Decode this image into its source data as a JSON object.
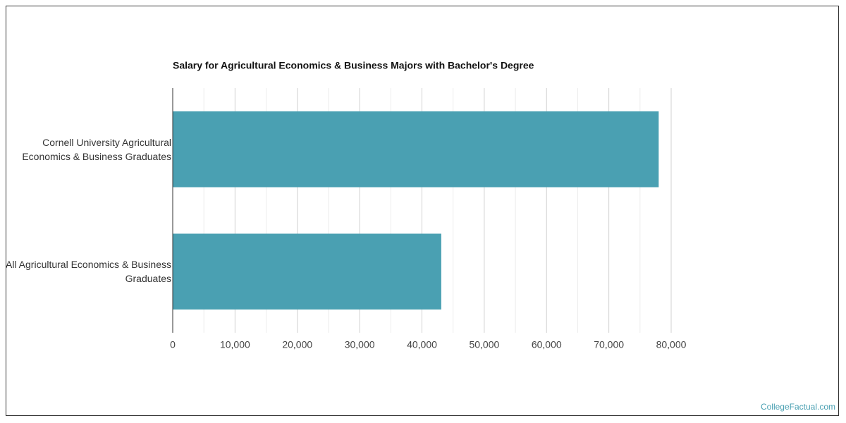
{
  "chart_data": {
    "type": "bar",
    "orientation": "horizontal",
    "title": "Salary for Agricultural Economics & Business Majors with Bachelor's Degree",
    "categories": [
      "Cornell University Agricultural Economics & Business Graduates",
      "All Agricultural Economics & Business Graduates"
    ],
    "values": [
      78000,
      43100
    ],
    "color": "#4aa0b2",
    "xlim": [
      0,
      80000
    ],
    "xticks": [
      0,
      {
        "value": 10000,
        "label": "10,000"
      },
      {
        "value": 20000,
        "label": "20,000"
      },
      {
        "value": 30000,
        "label": "30,000"
      },
      {
        "value": 40000,
        "label": "40,000"
      },
      {
        "value": 50000,
        "label": "50,000"
      },
      {
        "value": 60000,
        "label": "60,000"
      },
      {
        "value": 70000,
        "label": "70,000"
      },
      {
        "value": 80000,
        "label": "80,000"
      }
    ],
    "xminor": [
      5000,
      15000,
      25000,
      35000,
      45000,
      55000,
      65000,
      75000
    ],
    "grid": true
  },
  "source": "CollegeFactual.com"
}
